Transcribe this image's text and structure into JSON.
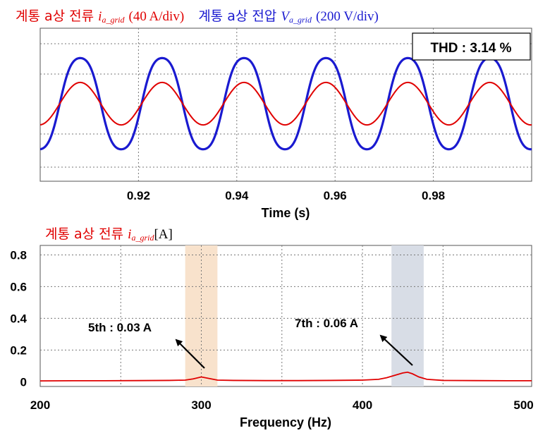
{
  "top_chart": {
    "legend": {
      "current_label": "계통 a상 전류",
      "current_symbol": "i",
      "current_subscript": "a_grid",
      "current_scale": "(40 A/div)",
      "voltage_label": "계통 a상 전압",
      "voltage_symbol": "V",
      "voltage_subscript": "a_grid",
      "voltage_scale": "(200 V/div)"
    },
    "thd_text": "THD : 3.14 %",
    "xlabel": "Time (s)",
    "xticks": [
      "0.92",
      "0.94",
      "0.96",
      "0.98"
    ]
  },
  "bottom_chart": {
    "title_label": "계통 a상 전류",
    "title_symbol": "i",
    "title_subscript": "a_grid",
    "title_unit": "[A]",
    "xlabel": "Frequency (Hz)",
    "xticks": [
      "200",
      "300",
      "400",
      "500"
    ],
    "yticks": [
      "0",
      "0.2",
      "0.4",
      "0.6",
      "0.8"
    ],
    "annotation_5th": "5th : 0.03 A",
    "annotation_7th": "7th : 0.06 A"
  },
  "chart_data": [
    {
      "type": "line",
      "x_range": [
        0.9,
        1.0
      ],
      "xticks": [
        0.92,
        0.94,
        0.96,
        0.98
      ],
      "series": [
        {
          "name": "계통 a상 전압",
          "color": "#1a1ad0",
          "frequency_hz": 60,
          "amplitude_div": 1.6
        },
        {
          "name": "계통 a상 전류",
          "color": "#e00000",
          "frequency_hz": 60,
          "amplitude_div": 0.7
        }
      ],
      "grid": true,
      "thd_percent": 3.14
    },
    {
      "type": "line",
      "x_range": [
        200,
        505
      ],
      "ylim": [
        -0.03,
        0.86
      ],
      "xticks": [
        200,
        300,
        400,
        500
      ],
      "yticks": [
        0,
        0.2,
        0.4,
        0.6,
        0.8
      ],
      "series": [
        {
          "name": "계통 a상 전류",
          "color": "#e00000",
          "x": [
            200,
            220,
            240,
            260,
            280,
            290,
            295,
            300,
            305,
            310,
            320,
            340,
            360,
            380,
            400,
            410,
            415,
            420,
            425,
            428,
            431,
            435,
            440,
            450,
            470,
            490,
            505
          ],
          "y": [
            0.005,
            0.006,
            0.006,
            0.007,
            0.008,
            0.01,
            0.018,
            0.03,
            0.02,
            0.01,
            0.008,
            0.007,
            0.007,
            0.008,
            0.01,
            0.015,
            0.025,
            0.04,
            0.055,
            0.06,
            0.05,
            0.03,
            0.015,
            0.008,
            0.007,
            0.006,
            0.006
          ]
        }
      ],
      "highlight_bands": [
        {
          "harmonic": "5th",
          "from_hz": 290,
          "to_hz": 310,
          "color": "#f8e2cc"
        },
        {
          "harmonic": "7th",
          "from_hz": 418,
          "to_hz": 438,
          "color": "#d8dde6"
        }
      ],
      "annotations": [
        {
          "label": "5th : 0.03 A",
          "x_hz": 300,
          "value_a": 0.03
        },
        {
          "label": "7th : 0.06 A",
          "x_hz": 428,
          "value_a": 0.06
        }
      ],
      "grid": true
    }
  ]
}
